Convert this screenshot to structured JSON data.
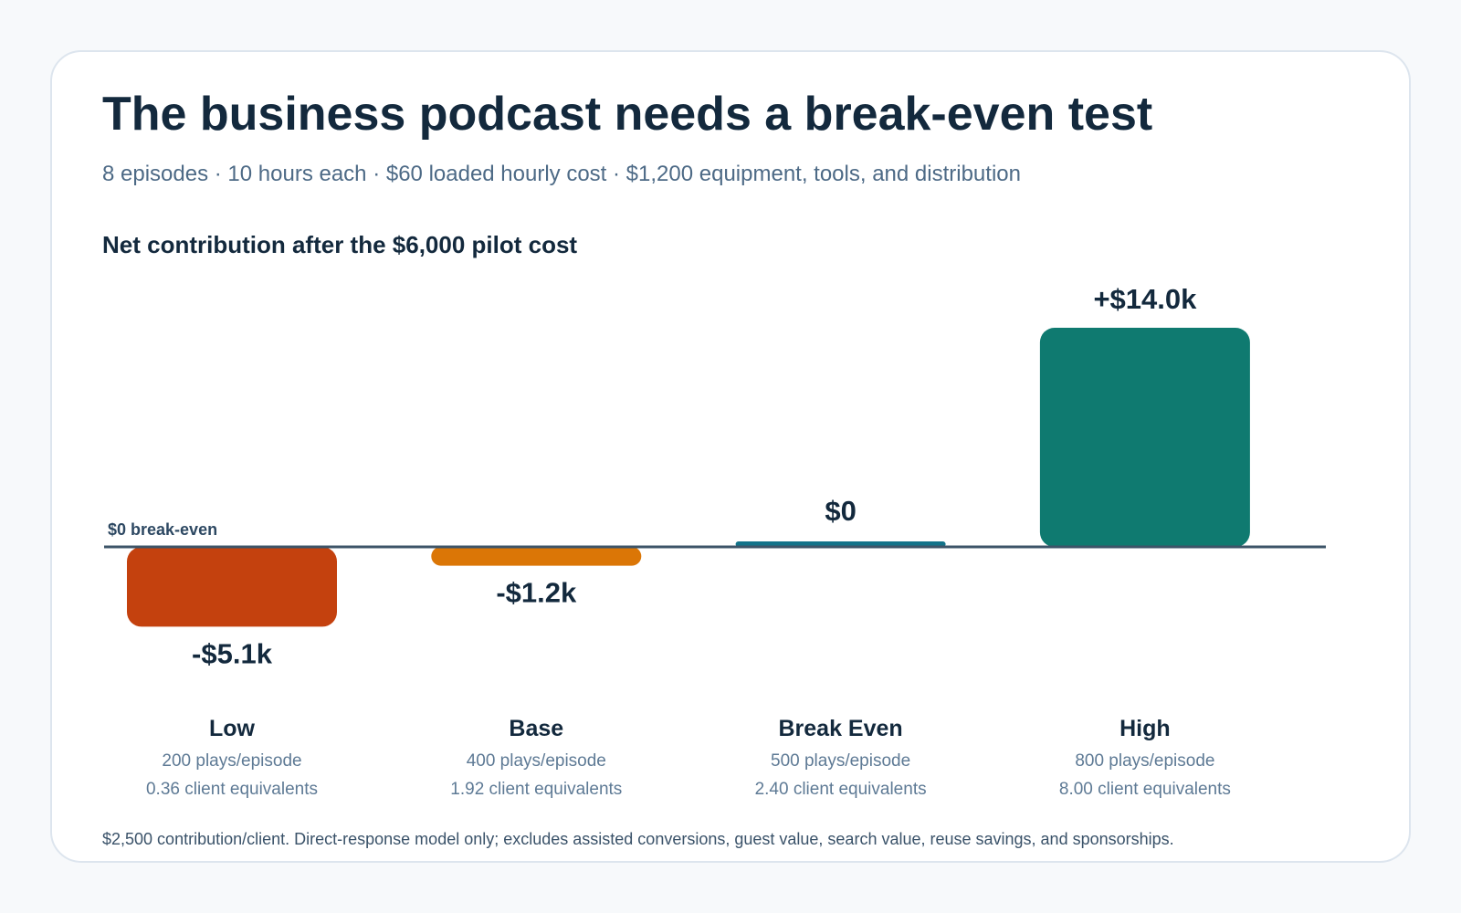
{
  "header": {
    "title": "The business podcast needs a break-even test",
    "subtitle": "8 episodes · 10 hours each · $60 loaded hourly cost · $1,200 equipment, tools, and distribution"
  },
  "chart_heading": "Net contribution after the $6,000 pilot cost",
  "chart_data": {
    "type": "bar",
    "categories": [
      "Low",
      "Base",
      "Break Even",
      "High"
    ],
    "values": [
      -5100,
      -1200,
      0,
      14000
    ],
    "value_labels": [
      "-$5.1k",
      "-$1.2k",
      "$0",
      "+$14.0k"
    ],
    "plays_labels": [
      "200 plays/episode",
      "400 plays/episode",
      "500 plays/episode",
      "800 plays/episode"
    ],
    "client_labels": [
      "0.36 client equivalents",
      "1.92 client equivalents",
      "2.40 client equivalents",
      "8.00 client equivalents"
    ],
    "zero_line_label": "$0 break-even",
    "colors": [
      "#c4410e",
      "#db7606",
      "#12738a",
      "#0f7a70"
    ],
    "axis_color": "#3d5468",
    "grid": false
  },
  "footnote": "$2,500 contribution/client. Direct-response model only; excludes assisted conversions, guest value, search value, reuse savings, and sponsorships."
}
